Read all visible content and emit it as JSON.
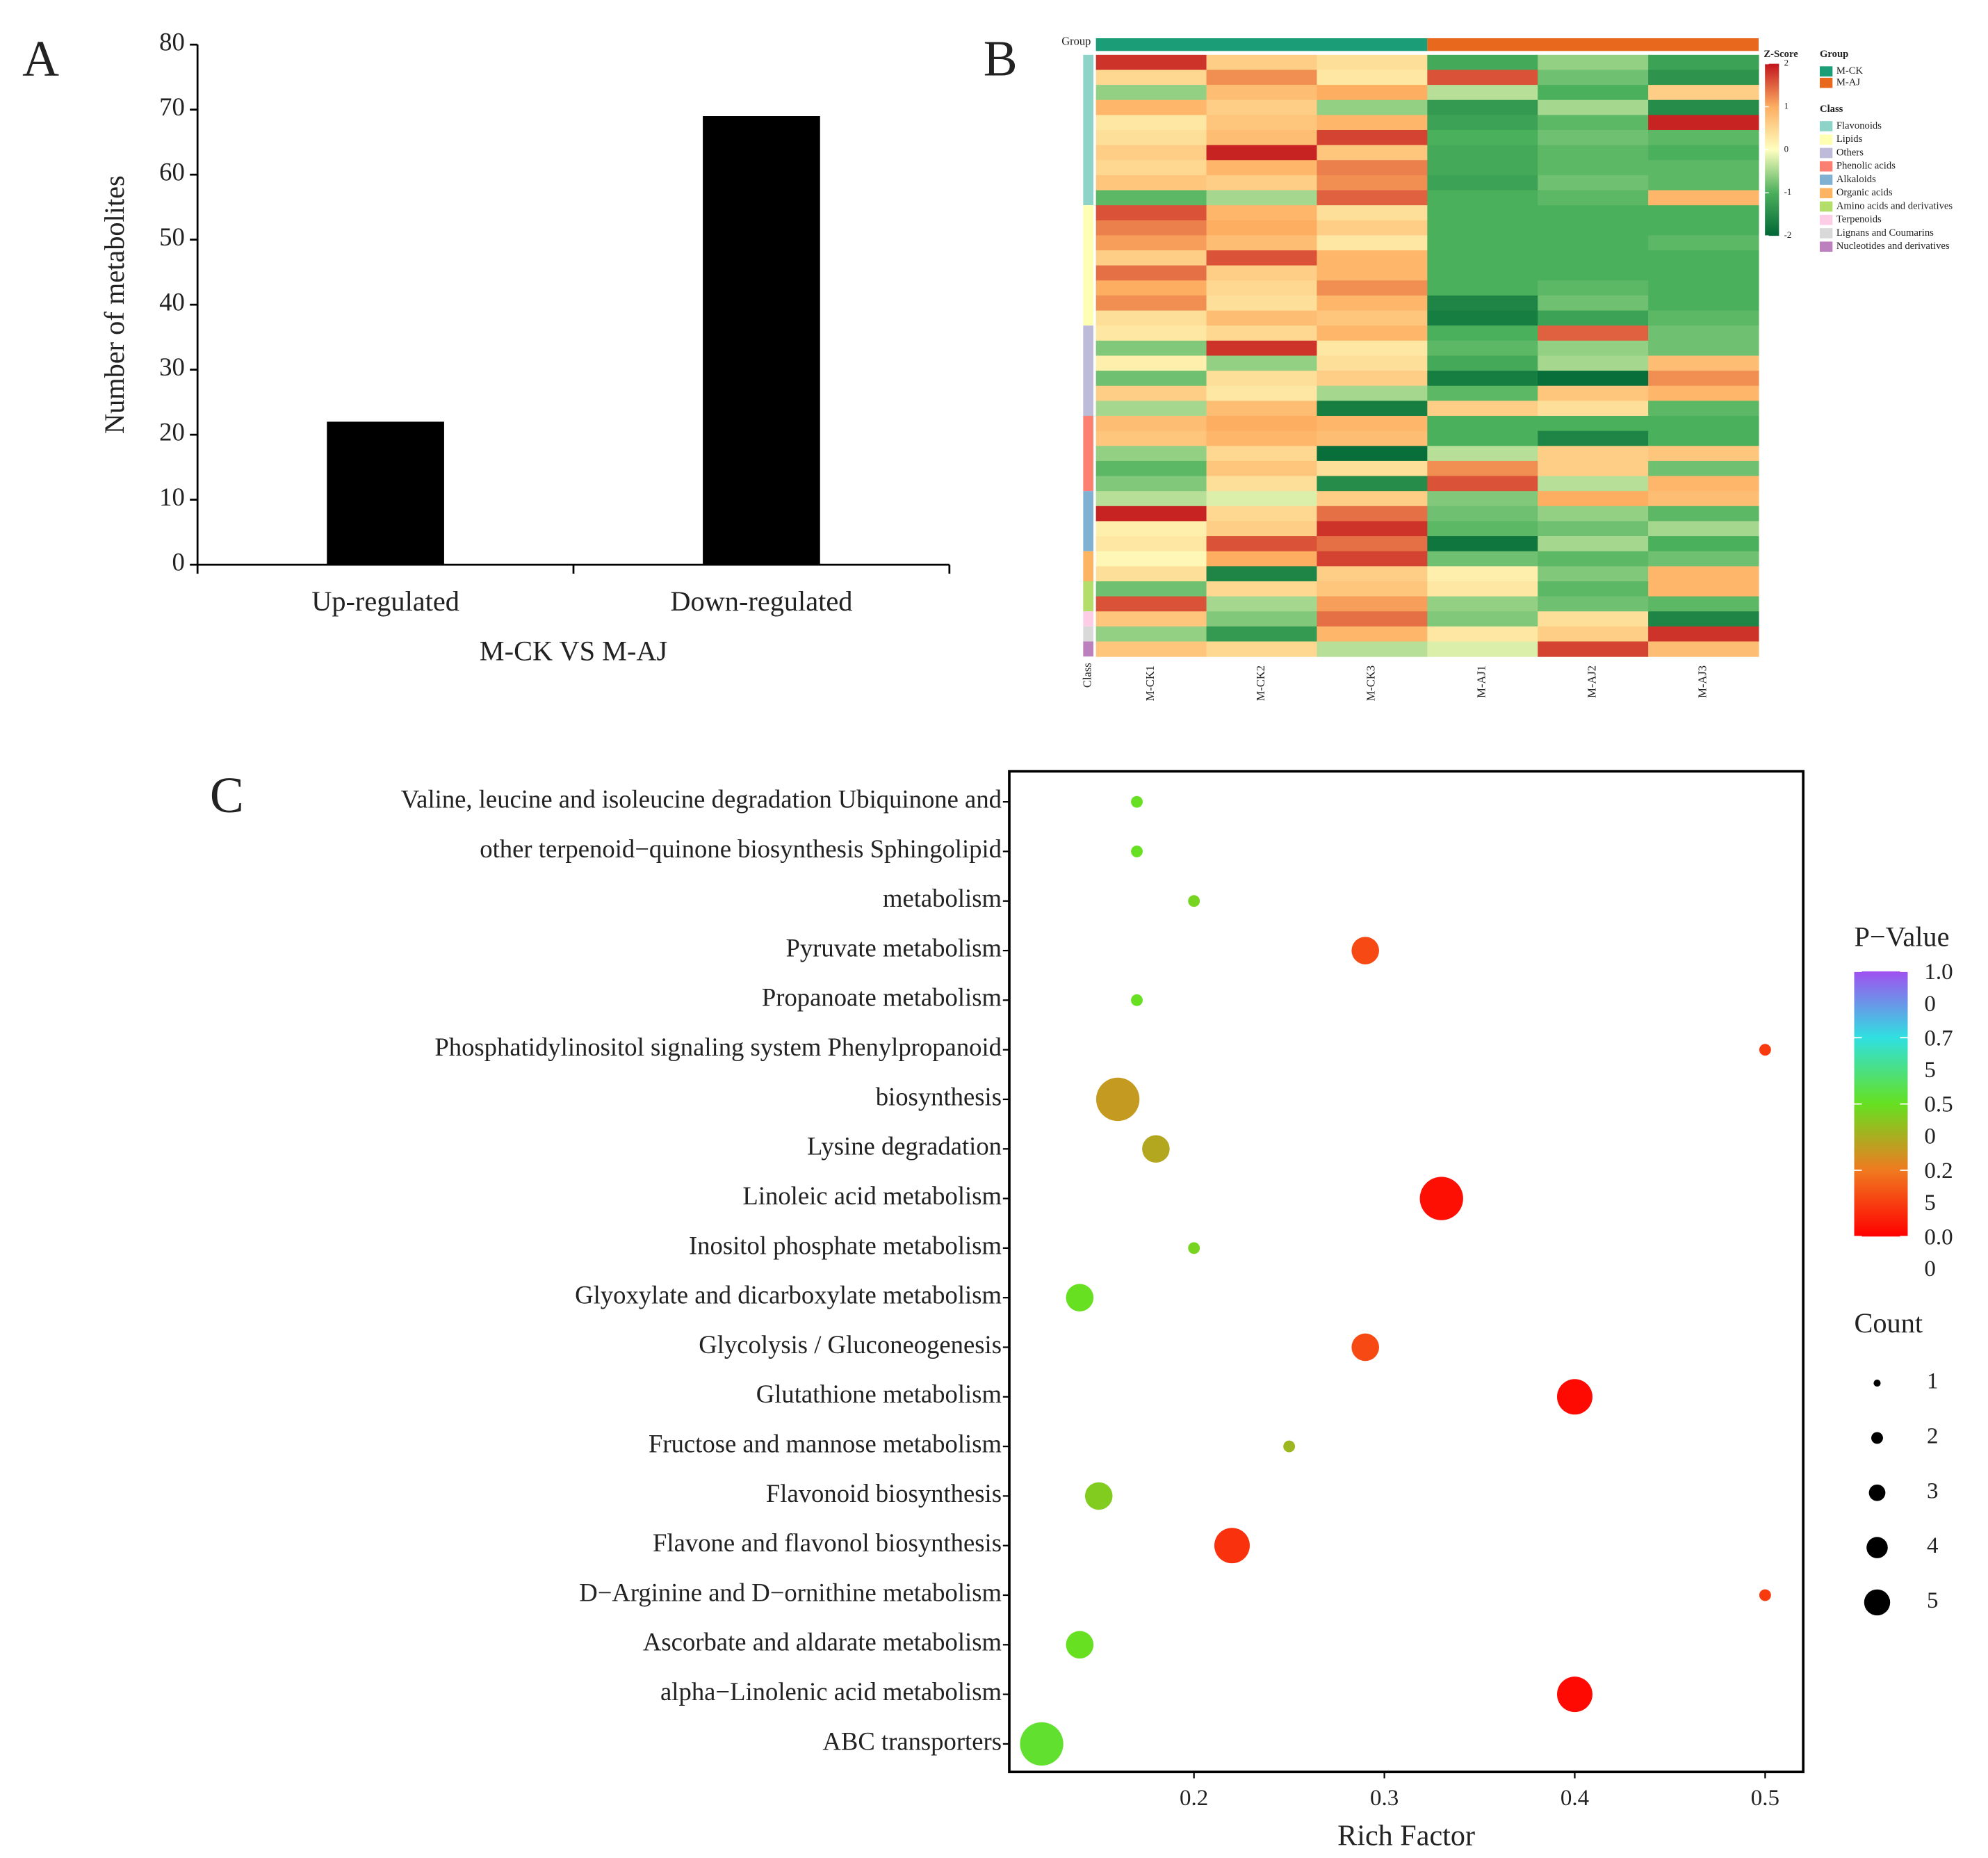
{
  "chart_data": [
    {
      "type": "bar",
      "panel_label": "A",
      "categories": [
        "Up-regulated",
        "Down-regulated"
      ],
      "values": [
        22,
        69
      ],
      "color": "#000000",
      "ylabel": "Number of metabolites",
      "xlabel": "M-CK VS M-AJ",
      "ylim": [
        0,
        80
      ],
      "yticks": [
        0,
        10,
        20,
        30,
        40,
        50,
        60,
        70,
        80
      ]
    },
    {
      "type": "heatmap",
      "panel_label": "B",
      "group_label": "Group",
      "class_label": "Class",
      "zscore_label": "Z-Score",
      "columns": [
        "M-CK1",
        "M-CK2",
        "M-CK3",
        "M-AJ1",
        "M-AJ2",
        "M-AJ3"
      ],
      "groups": [
        {
          "name": "M-CK",
          "color": "#1b9e77",
          "columns": 3
        },
        {
          "name": "M-AJ",
          "color": "#e8681e",
          "columns": 3
        }
      ],
      "classes": [
        {
          "name": "Flavonoids",
          "color": "#8dd3c7",
          "rows": 10
        },
        {
          "name": "Lipids",
          "color": "#ffffb3",
          "rows": 8
        },
        {
          "name": "Others",
          "color": "#bebada",
          "rows": 6
        },
        {
          "name": "Phenolic acids",
          "color": "#fb8072",
          "rows": 5
        },
        {
          "name": "Alkaloids",
          "color": "#80b1d3",
          "rows": 4
        },
        {
          "name": "Organic acids",
          "color": "#fdb462",
          "rows": 2
        },
        {
          "name": "Amino acids and derivatives",
          "color": "#b3de69",
          "rows": 2
        },
        {
          "name": "Terpenoids",
          "color": "#fccde5",
          "rows": 1
        },
        {
          "name": "Lignans and Coumarins",
          "color": "#d9d9d9",
          "rows": 1
        },
        {
          "name": "Nucleotides and derivatives",
          "color": "#bc80bd",
          "rows": 1
        }
      ],
      "zlim": [
        -2,
        2
      ],
      "zticks": [
        2,
        1,
        0,
        -1,
        -2
      ],
      "colorscale": [
        "#006837",
        "#4bb05c",
        "#ffffbf",
        "#fdae61",
        "#c2141c"
      ],
      "values": [
        [
          1.8,
          0.6,
          0.4,
          -1.1,
          -0.6,
          -1.2
        ],
        [
          0.5,
          1.2,
          0.3,
          1.6,
          -0.8,
          -1.4
        ],
        [
          -0.6,
          0.8,
          1.0,
          -0.4,
          -1.0,
          0.6
        ],
        [
          0.9,
          0.6,
          -0.6,
          -1.3,
          -0.5,
          -1.5
        ],
        [
          0.3,
          0.7,
          0.9,
          -1.2,
          -0.9,
          1.9
        ],
        [
          0.4,
          0.8,
          1.7,
          -1.0,
          -0.8,
          -0.9
        ],
        [
          0.6,
          1.9,
          0.7,
          -1.1,
          -0.9,
          -1.0
        ],
        [
          0.5,
          0.9,
          1.3,
          -1.1,
          -0.9,
          -0.9
        ],
        [
          0.7,
          0.6,
          1.2,
          -1.2,
          -0.8,
          -0.9
        ],
        [
          -0.9,
          -0.5,
          1.5,
          -1.0,
          -0.9,
          0.9
        ],
        [
          1.6,
          0.9,
          0.4,
          -1.0,
          -1.0,
          -1.0
        ],
        [
          1.3,
          1.0,
          0.6,
          -1.0,
          -1.0,
          -1.0
        ],
        [
          1.1,
          0.8,
          0.3,
          -1.0,
          -1.0,
          -0.9
        ],
        [
          0.6,
          1.6,
          0.9,
          -1.0,
          -1.0,
          -1.0
        ],
        [
          1.4,
          0.6,
          0.9,
          -1.0,
          -1.0,
          -1.0
        ],
        [
          1.0,
          0.5,
          1.2,
          -1.0,
          -0.9,
          -1.0
        ],
        [
          1.2,
          0.4,
          0.9,
          -1.6,
          -0.8,
          -1.0
        ],
        [
          0.4,
          0.8,
          0.7,
          -1.7,
          -1.2,
          -0.9
        ],
        [
          0.3,
          0.5,
          0.9,
          -1.0,
          1.5,
          -0.8
        ],
        [
          -0.7,
          1.8,
          0.3,
          -0.9,
          -0.6,
          -0.8
        ],
        [
          0.2,
          -0.6,
          0.4,
          -1.1,
          -0.5,
          0.8
        ],
        [
          -0.8,
          0.4,
          0.6,
          -1.7,
          -1.9,
          1.2
        ],
        [
          0.6,
          0.3,
          -0.5,
          -0.9,
          0.7,
          0.9
        ],
        [
          -0.5,
          0.8,
          -1.7,
          0.6,
          0.4,
          -0.9
        ],
        [
          0.8,
          1.0,
          0.9,
          -1.0,
          -1.0,
          -1.0
        ],
        [
          0.7,
          0.9,
          0.8,
          -1.0,
          -1.6,
          -1.0
        ],
        [
          -0.6,
          0.5,
          -1.9,
          -0.4,
          0.6,
          0.7
        ],
        [
          -0.9,
          0.7,
          0.4,
          1.2,
          0.6,
          -0.8
        ],
        [
          -0.7,
          0.4,
          -1.5,
          1.6,
          -0.4,
          0.9
        ],
        [
          -0.4,
          -0.2,
          0.6,
          -0.7,
          1.0,
          0.8
        ],
        [
          1.9,
          0.5,
          1.4,
          -0.8,
          -0.6,
          -0.9
        ],
        [
          0.2,
          0.6,
          1.8,
          -0.9,
          -0.8,
          -0.5
        ],
        [
          0.3,
          1.6,
          1.4,
          -1.8,
          -0.5,
          -1.0
        ],
        [
          0.1,
          1.0,
          1.7,
          -0.8,
          -0.9,
          -0.8
        ],
        [
          0.4,
          -1.6,
          0.6,
          0.2,
          -0.7,
          0.9
        ],
        [
          -0.8,
          0.5,
          0.7,
          0.3,
          -0.9,
          0.9
        ],
        [
          1.6,
          -0.5,
          1.1,
          -0.6,
          -0.8,
          -0.9
        ],
        [
          0.7,
          -0.7,
          1.4,
          -0.7,
          0.4,
          -1.6
        ],
        [
          -0.6,
          -1.3,
          0.9,
          0.3,
          0.6,
          1.8
        ],
        [
          0.7,
          0.5,
          -0.4,
          -0.2,
          1.7,
          0.8
        ]
      ]
    },
    {
      "type": "bubble",
      "panel_label": "C",
      "xlabel": "Rich Factor",
      "categories": [
        "Valine, leucine and isoleucine degradation Ubiquinone and",
        "other terpenoid−quinone biosynthesis Sphingolipid",
        "metabolism",
        "Pyruvate metabolism",
        "Propanoate metabolism",
        "Phosphatidylinositol signaling system Phenylpropanoid",
        "biosynthesis",
        "Lysine degradation",
        "Linoleic acid metabolism",
        "Inositol phosphate metabolism",
        "Glyoxylate and dicarboxylate metabolism",
        "Glycolysis / Gluconeogenesis",
        "Glutathione metabolism",
        "Fructose and mannose metabolism",
        "Flavonoid biosynthesis",
        "Flavone and flavonol biosynthesis",
        "D−Arginine and D−ornithine metabolism",
        "Ascorbate and aldarate metabolism",
        "alpha−Linolenic acid metabolism",
        "ABC transporters"
      ],
      "x": [
        0.17,
        0.17,
        0.2,
        0.29,
        0.17,
        0.5,
        0.16,
        0.18,
        0.33,
        0.2,
        0.14,
        0.29,
        0.4,
        0.25,
        0.15,
        0.22,
        0.5,
        0.14,
        0.4,
        0.12
      ],
      "p_values": [
        0.5,
        0.5,
        0.47,
        0.15,
        0.5,
        0.12,
        0.33,
        0.36,
        0.03,
        0.47,
        0.5,
        0.15,
        0.02,
        0.4,
        0.45,
        0.1,
        0.12,
        0.5,
        0.02,
        0.52
      ],
      "counts": [
        1,
        1,
        1,
        3,
        1,
        1,
        5,
        3,
        5,
        1,
        3,
        3,
        4,
        1,
        3,
        4,
        1,
        3,
        4,
        5
      ],
      "xlim": [
        0.103,
        0.52
      ],
      "xticks": [
        0.2,
        0.3,
        0.4,
        0.5
      ],
      "color_legend_title": "P−Value",
      "colorscale": [
        "#ff0000",
        "#f07a20",
        "#66e020",
        "#30e0e0",
        "#a050f0"
      ],
      "color_ticks": [
        {
          "value": 1,
          "label": "1.00"
        },
        {
          "value": 0.75,
          "label": "0.75"
        },
        {
          "value": 0.5,
          "label": "0.50"
        },
        {
          "value": 0.25,
          "label": "0.25"
        },
        {
          "value": 0,
          "label": "0.00"
        }
      ],
      "clim": [
        0,
        1
      ],
      "size_legend_title": "Count",
      "size_ticks": [
        1,
        2,
        3,
        4,
        5
      ]
    }
  ]
}
